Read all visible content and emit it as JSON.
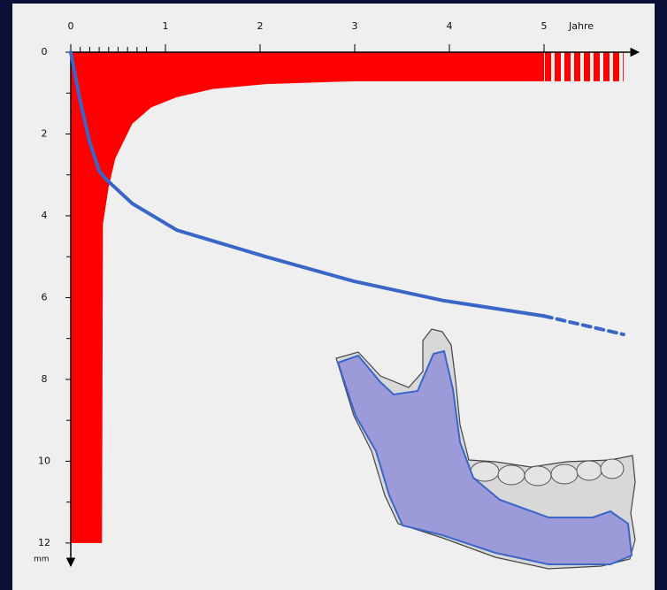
{
  "chart_data": {
    "type": "line",
    "x_axis_label": "Jahre",
    "y_axis_label": "mm",
    "xlim": [
      0,
      6
    ],
    "ylim": [
      0,
      12.5
    ],
    "invert_y": true,
    "x_axis_position": "top",
    "xticks": [
      0,
      1,
      2,
      3,
      4,
      5
    ],
    "xminorticks": [
      0.1,
      0.2,
      0.3,
      0.4,
      0.5,
      0.6,
      0.7,
      0.8
    ],
    "yticks": [
      0,
      2,
      4,
      6,
      8,
      10,
      12
    ],
    "yminorticks": [
      1,
      3,
      5,
      7,
      9,
      11
    ],
    "areas": [
      {
        "color": "#ff0000",
        "style": "solid",
        "x": [
          0,
          0.33,
          0.34,
          0.4,
          0.47,
          0.65,
          0.85,
          1.12,
          1.5,
          2.06,
          2.99,
          5
        ],
        "values": [
          12,
          12,
          4.2,
          3.3,
          2.6,
          1.75,
          1.35,
          1.1,
          0.9,
          0.78,
          0.71,
          0.71
        ]
      },
      {
        "color": "#ff0000",
        "style": "hatched",
        "x": [
          5,
          5.84
        ],
        "values": [
          0.71,
          0.71
        ]
      }
    ],
    "x": [
      0,
      0.1,
      0.2,
      0.3,
      0.37,
      0.65,
      1.12,
      2.06,
      2.99,
      3.93,
      5,
      5.84
    ],
    "series": [
      {
        "color": "#3a66c8",
        "style": "solid",
        "values": [
          0,
          1.2,
          2.2,
          2.9,
          3.1,
          3.7,
          4.35,
          5.0,
          5.6,
          6.07,
          6.45,
          null
        ]
      },
      {
        "color": "#3a66c8",
        "style": "dashed",
        "values": [
          null,
          null,
          null,
          null,
          null,
          null,
          null,
          null,
          null,
          null,
          6.45,
          6.9
        ]
      }
    ]
  }
}
